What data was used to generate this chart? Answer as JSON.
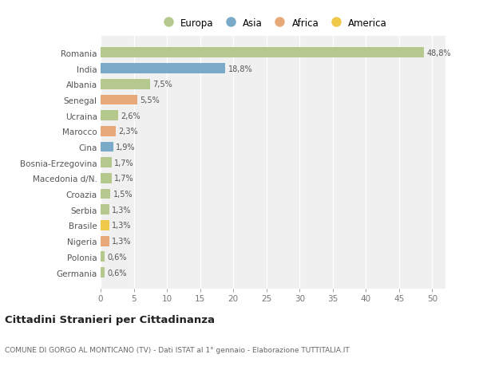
{
  "countries": [
    "Romania",
    "India",
    "Albania",
    "Senegal",
    "Ucraina",
    "Marocco",
    "Cina",
    "Bosnia-Erzegovina",
    "Macedonia d/N.",
    "Croazia",
    "Serbia",
    "Brasile",
    "Nigeria",
    "Polonia",
    "Germania"
  ],
  "values": [
    48.8,
    18.8,
    7.5,
    5.5,
    2.6,
    2.3,
    1.9,
    1.7,
    1.7,
    1.5,
    1.3,
    1.3,
    1.3,
    0.6,
    0.6
  ],
  "labels": [
    "48,8%",
    "18,8%",
    "7,5%",
    "5,5%",
    "2,6%",
    "2,3%",
    "1,9%",
    "1,7%",
    "1,7%",
    "1,5%",
    "1,3%",
    "1,3%",
    "1,3%",
    "0,6%",
    "0,6%"
  ],
  "colors": [
    "#b5c98e",
    "#7aaac8",
    "#b5c98e",
    "#e8a97a",
    "#b5c98e",
    "#e8a97a",
    "#7aaac8",
    "#b5c98e",
    "#b5c98e",
    "#b5c98e",
    "#b5c98e",
    "#f0c94a",
    "#e8a97a",
    "#b5c98e",
    "#b5c98e"
  ],
  "legend_labels": [
    "Europa",
    "Asia",
    "Africa",
    "America"
  ],
  "legend_colors": [
    "#b5c98e",
    "#7aaac8",
    "#e8a97a",
    "#f0c94a"
  ],
  "xlim": [
    0,
    52
  ],
  "xticks": [
    0,
    5,
    10,
    15,
    20,
    25,
    30,
    35,
    40,
    45,
    50
  ],
  "title": "Cittadini Stranieri per Cittadinanza",
  "subtitle": "COMUNE DI GORGO AL MONTICANO (TV) - Dati ISTAT al 1° gennaio - Elaborazione TUTTITALIA.IT",
  "bg_color": "#ffffff",
  "plot_bg_color": "#f0f0f0",
  "grid_color": "#ffffff",
  "bar_height": 0.65
}
